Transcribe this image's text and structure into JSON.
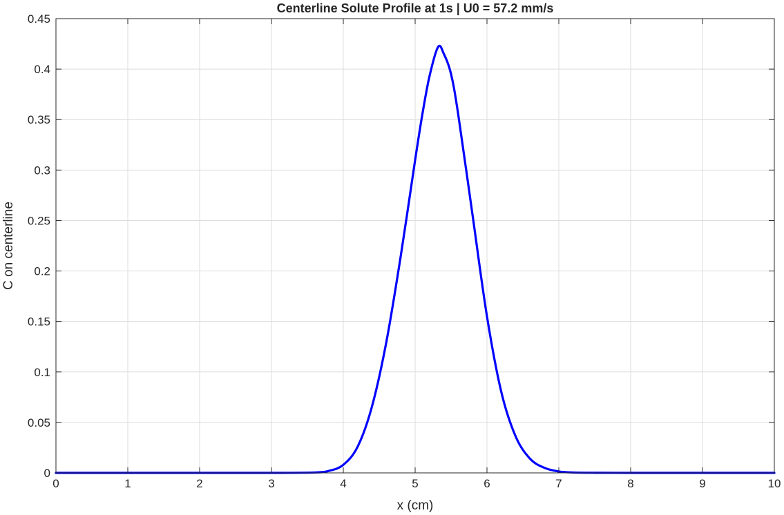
{
  "chart_data": {
    "type": "line",
    "title": "Centerline Solute Profile at 1s | U0 = 57.2 mm/s",
    "xlabel": "x (cm)",
    "ylabel": "C on centerline",
    "xlim": [
      0,
      10
    ],
    "ylim": [
      0,
      0.45
    ],
    "xticks": [
      0,
      1,
      2,
      3,
      4,
      5,
      6,
      7,
      8,
      9,
      10
    ],
    "yticks": [
      0,
      0.05,
      0.1,
      0.15,
      0.2,
      0.25,
      0.3,
      0.35,
      0.4,
      0.45
    ],
    "xtick_labels": [
      "0",
      "1",
      "2",
      "3",
      "4",
      "5",
      "6",
      "7",
      "8",
      "9",
      "10"
    ],
    "ytick_labels": [
      "0",
      "0.05",
      "0.1",
      "0.15",
      "0.2",
      "0.25",
      "0.3",
      "0.35",
      "0.4",
      "0.45"
    ],
    "grid": true,
    "series": [
      {
        "color": "#0000ff",
        "x": [
          0,
          1,
          2,
          3,
          3.6,
          3.8,
          4.0,
          4.2,
          4.4,
          4.6,
          4.8,
          5.0,
          5.1,
          5.2,
          5.32,
          5.4,
          5.5,
          5.6,
          5.8,
          6.0,
          6.2,
          6.4,
          6.6,
          6.8,
          7.0,
          7.2,
          7.5,
          8,
          9,
          10
        ],
        "y": [
          0,
          0,
          0,
          0,
          0.0004,
          0.002,
          0.008,
          0.026,
          0.066,
          0.13,
          0.215,
          0.31,
          0.355,
          0.393,
          0.422,
          0.415,
          0.395,
          0.355,
          0.255,
          0.155,
          0.08,
          0.036,
          0.014,
          0.005,
          0.0014,
          0.0004,
          0.0001,
          0,
          0,
          0
        ]
      }
    ]
  }
}
